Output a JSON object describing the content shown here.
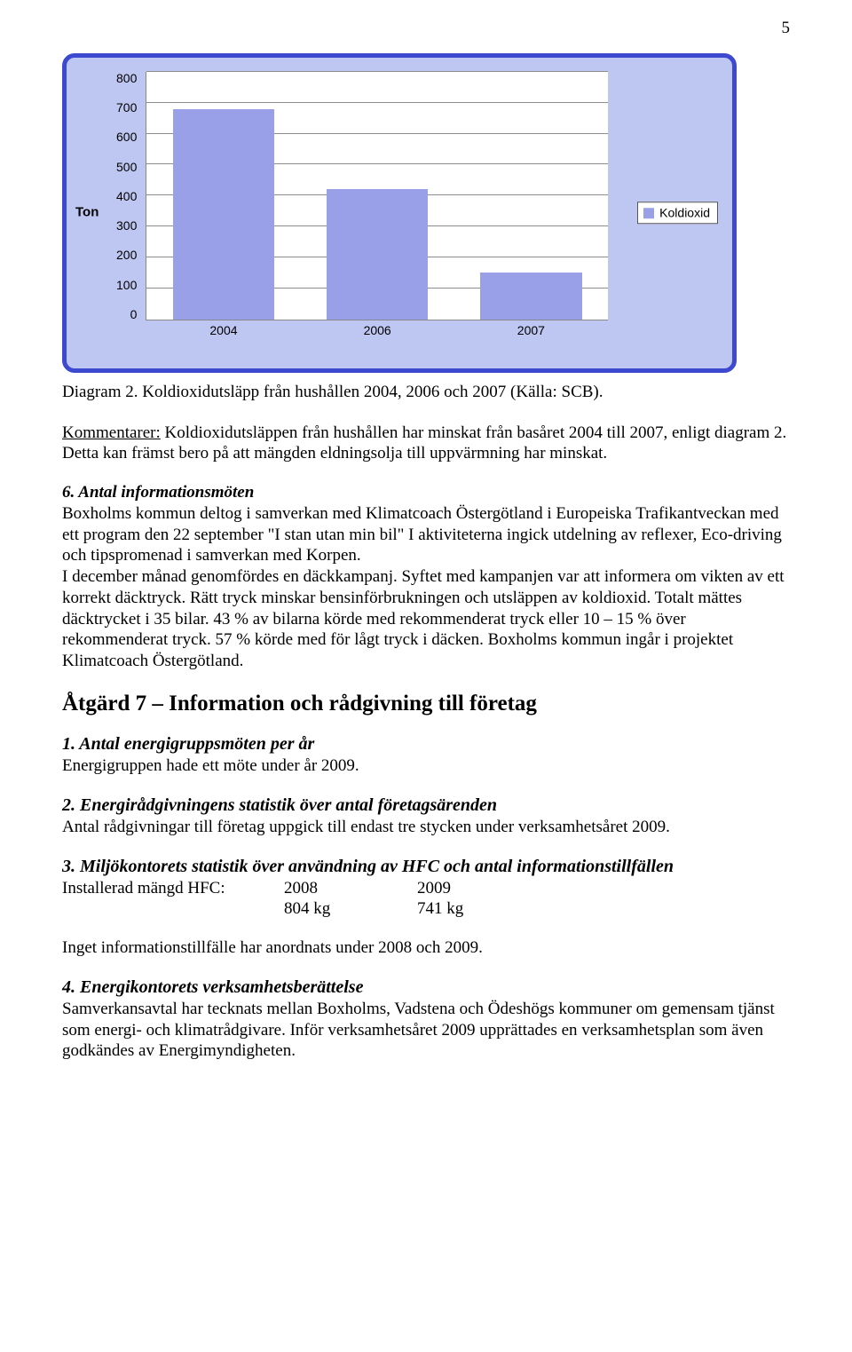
{
  "page_number": "5",
  "chart": {
    "type": "bar",
    "categories": [
      "2004",
      "2006",
      "2007"
    ],
    "values": [
      680,
      420,
      150
    ],
    "bar_colors": [
      "#9aa0e8",
      "#9aa0e8",
      "#9aa0e8"
    ],
    "ylabel": "Ton",
    "ylim": [
      0,
      800
    ],
    "ytick_step": 100,
    "yticks": [
      "800",
      "700",
      "600",
      "500",
      "400",
      "300",
      "200",
      "100",
      "0"
    ],
    "legend_label": "Koldioxid",
    "background_color": "#bec6f2",
    "border_color": "#3d49cf",
    "plot_background": "#ffffff",
    "grid_color": "#8c8c8c",
    "bar_width_pct": 22,
    "label_fontsize": 14,
    "ylabel_fontsize": 15
  },
  "caption_prefix": "Diagram 2.",
  "caption_text": " Koldioxidutsläpp från hushållen 2004, 2006 och 2007 (Källa: SCB).",
  "kommentarer_label": "Kommentarer:",
  "kommentarer_body": " Koldioxidutsläppen från hushållen har minskat från basåret 2004 till 2007, enligt diagram 2. Detta kan främst bero på att mängden eldningsolja till uppvärmning har minskat.",
  "item6_heading": "6. Antal informationsmöten",
  "item6_body": "Boxholms kommun deltog i samverkan med Klimatcoach Östergötland i Europeiska Trafikantveckan med ett program den 22 september \"I stan utan min bil\" I aktiviteterna ingick utdelning av reflexer, Eco-driving och tipspromenad i samverkan med Korpen.\nI december månad genomfördes en däckkampanj. Syftet med kampanjen var att informera om vikten av ett korrekt däcktryck. Rätt tryck minskar bensinförbrukningen och utsläppen av koldioxid. Totalt mättes däcktrycket i 35 bilar. 43 % av bilarna körde med rekommenderat tryck eller 10 – 15 % över rekommenderat tryck. 57 % körde med för lågt tryck i däcken. Boxholms kommun ingår i projektet Klimatcoach Östergötland.",
  "section7_heading": "Åtgärd 7 – Information och rådgivning till företag",
  "sub1_heading": "1. Antal energigruppsmöten per år",
  "sub1_body": "Energigruppen hade ett möte under år 2009.",
  "sub2_heading": "2. Energirådgivningens statistik över antal företagsärenden",
  "sub2_body": "Antal rådgivningar till företag uppgick till endast tre stycken under verksamhetsåret 2009.",
  "sub3_heading": "3. Miljökontorets statistik över användning av HFC och antal informationstillfällen",
  "hfc_label": "Installerad mängd HFC:",
  "hfc_years": [
    "2008",
    "2009"
  ],
  "hfc_values": [
    "804 kg",
    "741 kg"
  ],
  "hfc_note": "Inget informationstillfälle har anordnats under 2008 och 2009.",
  "sub4_heading": "4. Energikontorets verksamhetsberättelse",
  "sub4_body": "Samverkansavtal har tecknats mellan Boxholms, Vadstena och Ödeshögs kommuner om gemensam tjänst som energi- och klimatrådgivare. Inför verksamhetsåret 2009 upprättades en verksamhetsplan som även godkändes av Energimyndigheten."
}
